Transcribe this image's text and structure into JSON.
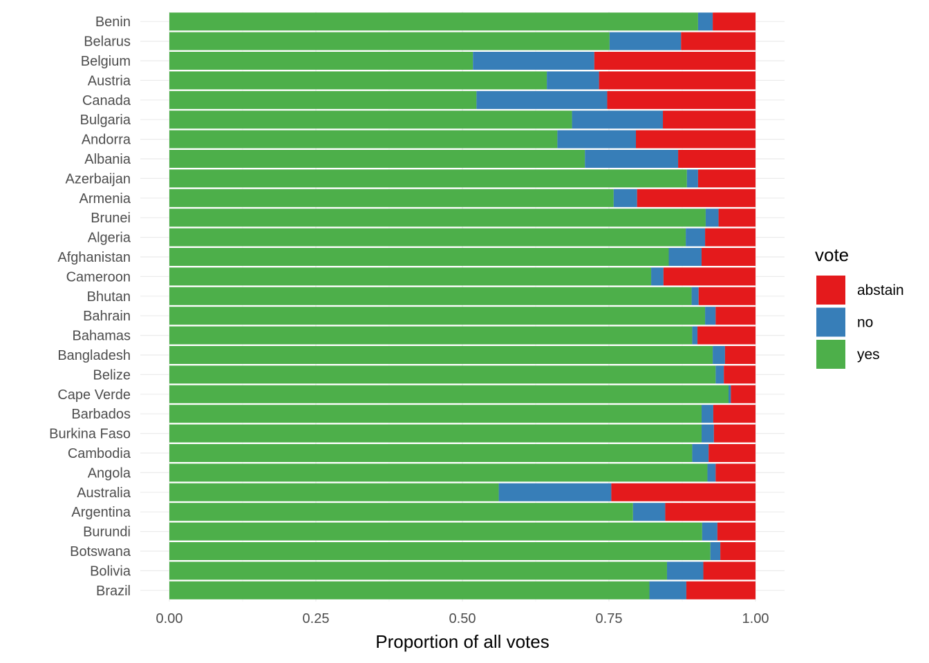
{
  "chart_data": {
    "type": "bar",
    "orientation": "horizontal",
    "stacked": true,
    "xlabel": "Proportion of all votes",
    "ylabel": "",
    "xlim": [
      0,
      1
    ],
    "x_ticks": [
      "0.00",
      "0.25",
      "0.50",
      "0.75",
      "1.00"
    ],
    "grid": true,
    "legend": {
      "title": "vote",
      "position": "right",
      "entries": [
        "abstain",
        "no",
        "yes"
      ]
    },
    "colors": {
      "yes": "#4daf4a",
      "no": "#377eb8",
      "abstain": "#e41a1c"
    },
    "categories": [
      "Benin",
      "Belarus",
      "Belgium",
      "Austria",
      "Canada",
      "Bulgaria",
      "Andorra",
      "Albania",
      "Azerbaijan",
      "Armenia",
      "Brunei",
      "Algeria",
      "Afghanistan",
      "Cameroon",
      "Bhutan",
      "Bahrain",
      "Bahamas",
      "Bangladesh",
      "Belize",
      "Cape Verde",
      "Barbados",
      "Burkina Faso",
      "Cambodia",
      "Angola",
      "Australia",
      "Argentina",
      "Burundi",
      "Botswana",
      "Bolivia",
      "Brazil"
    ],
    "series": [
      {
        "name": "yes",
        "values": [
          0.902,
          0.751,
          0.518,
          0.644,
          0.524,
          0.687,
          0.662,
          0.709,
          0.883,
          0.758,
          0.915,
          0.881,
          0.852,
          0.822,
          0.891,
          0.914,
          0.892,
          0.927,
          0.932,
          0.954,
          0.908,
          0.908,
          0.892,
          0.918,
          0.562,
          0.791,
          0.909,
          0.923,
          0.849,
          0.819
        ]
      },
      {
        "name": "no",
        "values": [
          0.025,
          0.122,
          0.207,
          0.089,
          0.223,
          0.155,
          0.134,
          0.159,
          0.019,
          0.04,
          0.022,
          0.033,
          0.056,
          0.021,
          0.012,
          0.018,
          0.009,
          0.021,
          0.014,
          0.004,
          0.02,
          0.021,
          0.028,
          0.014,
          0.192,
          0.055,
          0.026,
          0.017,
          0.062,
          0.063
        ]
      },
      {
        "name": "abstain",
        "values": [
          0.073,
          0.127,
          0.275,
          0.267,
          0.253,
          0.158,
          0.204,
          0.132,
          0.098,
          0.202,
          0.063,
          0.086,
          0.092,
          0.157,
          0.097,
          0.068,
          0.099,
          0.052,
          0.054,
          0.042,
          0.072,
          0.071,
          0.08,
          0.068,
          0.246,
          0.154,
          0.065,
          0.06,
          0.089,
          0.118
        ]
      }
    ]
  }
}
